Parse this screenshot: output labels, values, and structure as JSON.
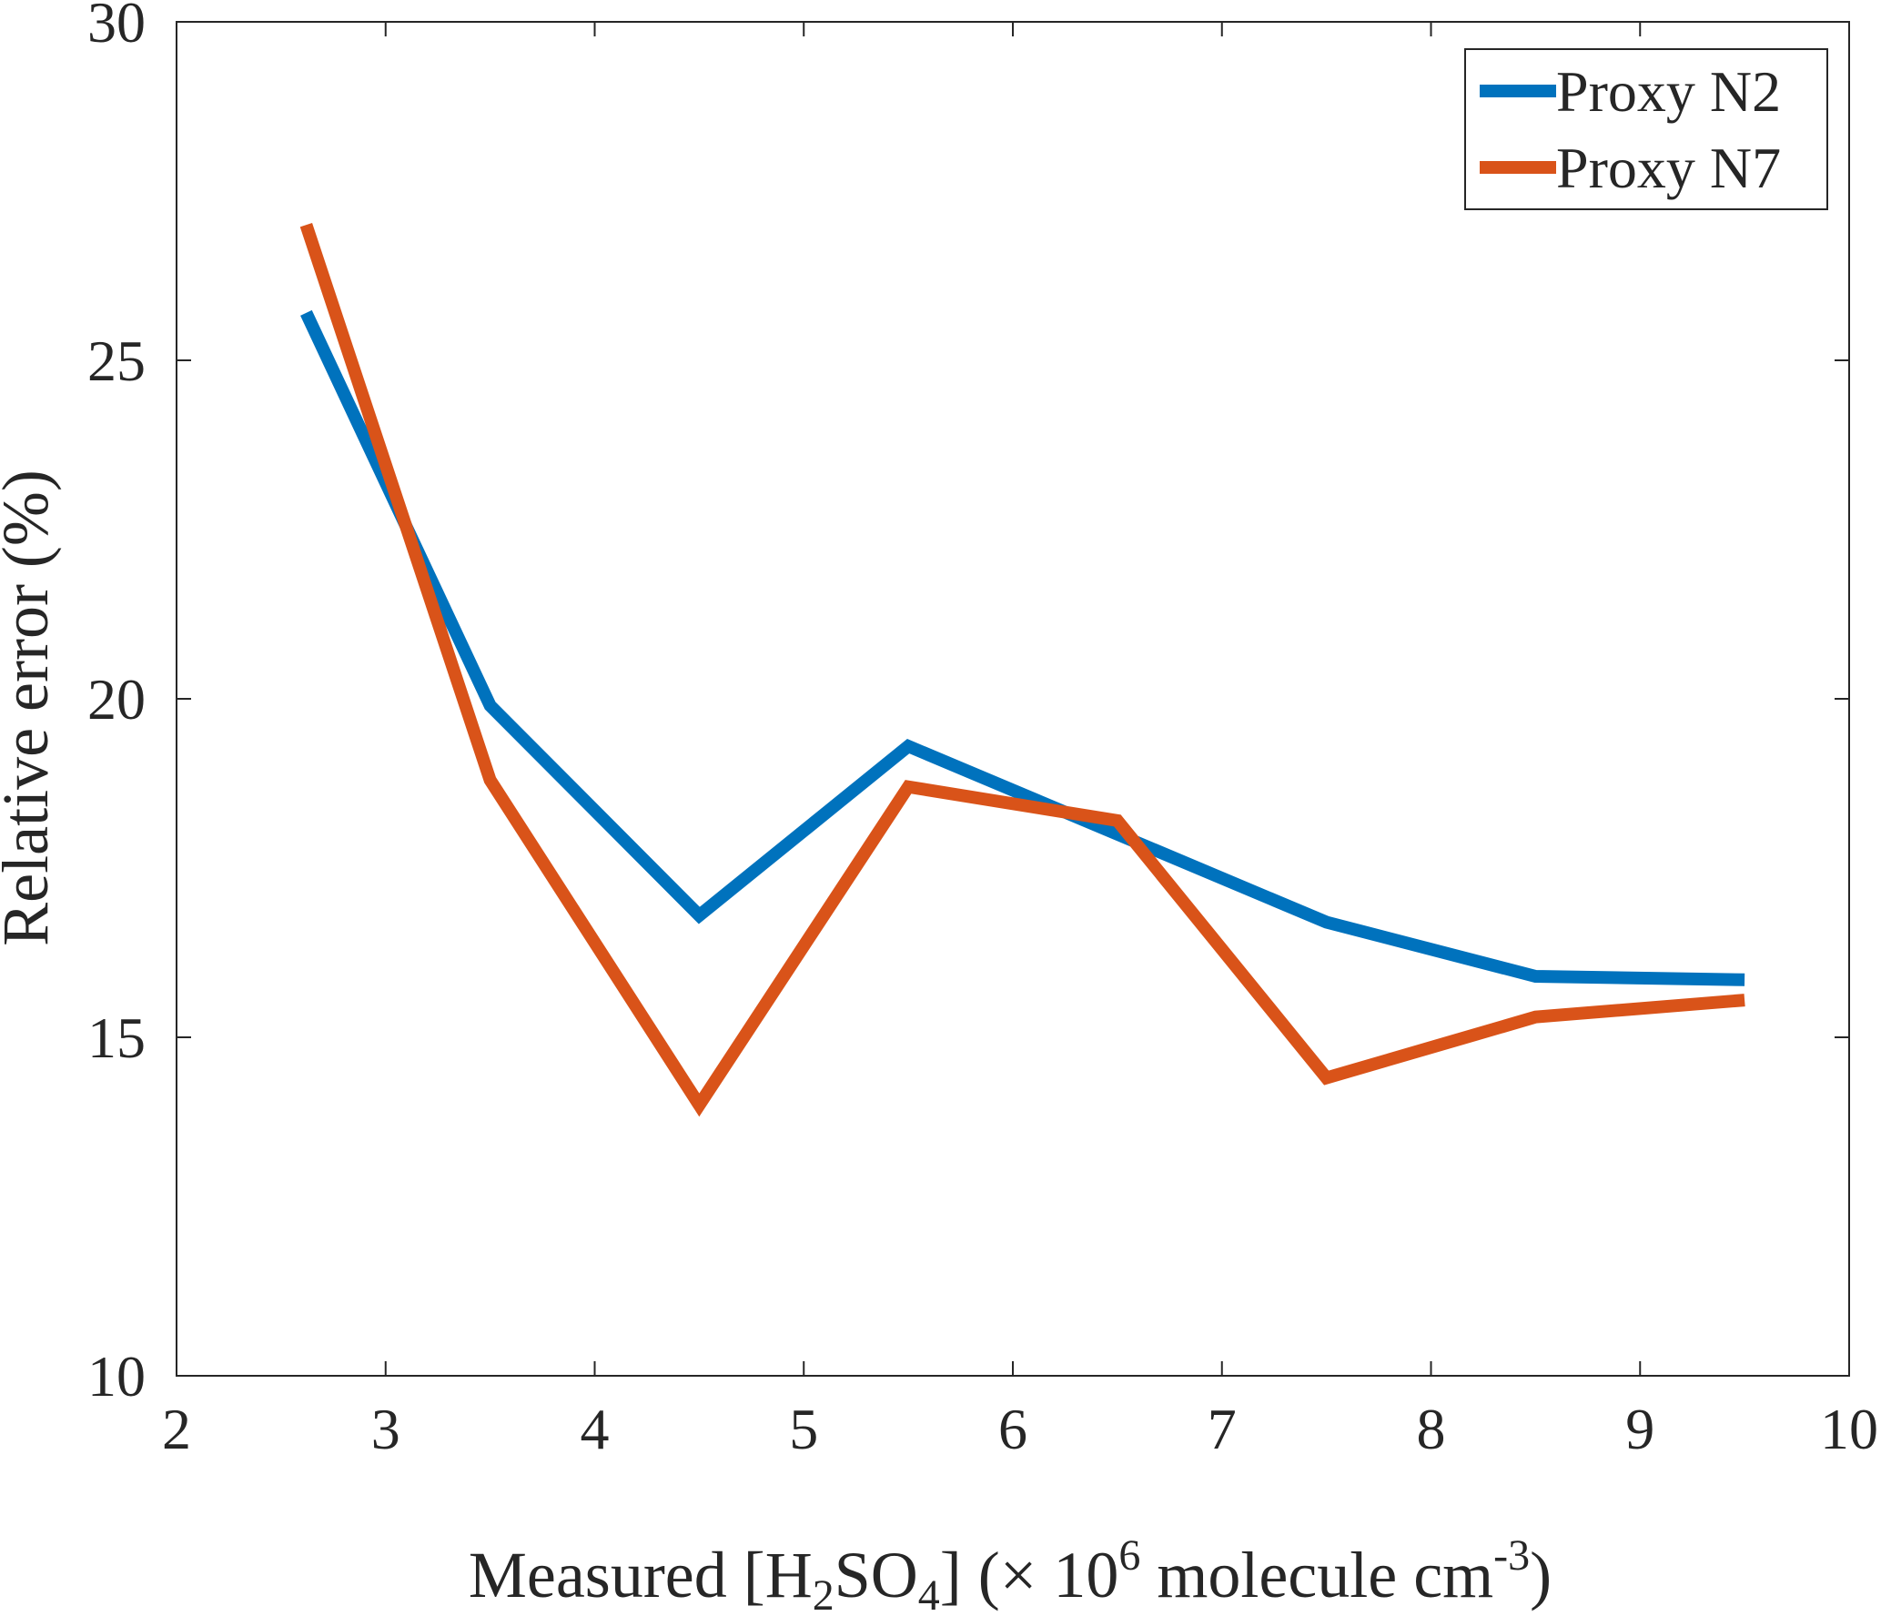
{
  "chart_data": {
    "type": "line",
    "title": "",
    "xlabel_parts": {
      "pre": "Measured [H",
      "sub1": "2",
      "mid1": "SO",
      "sub2": "4",
      "mid2": "] (× 10",
      "sup1": "6",
      "mid3": " molecule cm",
      "sup2": "-3",
      "post": ")"
    },
    "ylabel": "Relative error (%)",
    "xlim": [
      2,
      10
    ],
    "ylim": [
      10,
      30
    ],
    "xticks": [
      "2",
      "3",
      "4",
      "5",
      "6",
      "7",
      "8",
      "9",
      "10"
    ],
    "yticks": [
      "10",
      "15",
      "20",
      "25",
      "30"
    ],
    "grid": false,
    "legend_position": "top-right",
    "series": [
      {
        "name": "Proxy N2",
        "color": "#0072BD",
        "x": [
          2.62,
          3.5,
          4.5,
          5.5,
          6.5,
          7.5,
          8.5,
          9.5
        ],
        "y": [
          25.7,
          19.9,
          16.8,
          19.3,
          18.0,
          16.7,
          15.9,
          15.85
        ]
      },
      {
        "name": "Proxy N7",
        "color": "#D95319",
        "x": [
          2.62,
          3.5,
          4.5,
          5.5,
          6.5,
          7.5,
          8.5,
          9.5
        ],
        "y": [
          27.0,
          18.8,
          14.0,
          18.7,
          18.2,
          14.4,
          15.3,
          15.55
        ]
      }
    ]
  }
}
